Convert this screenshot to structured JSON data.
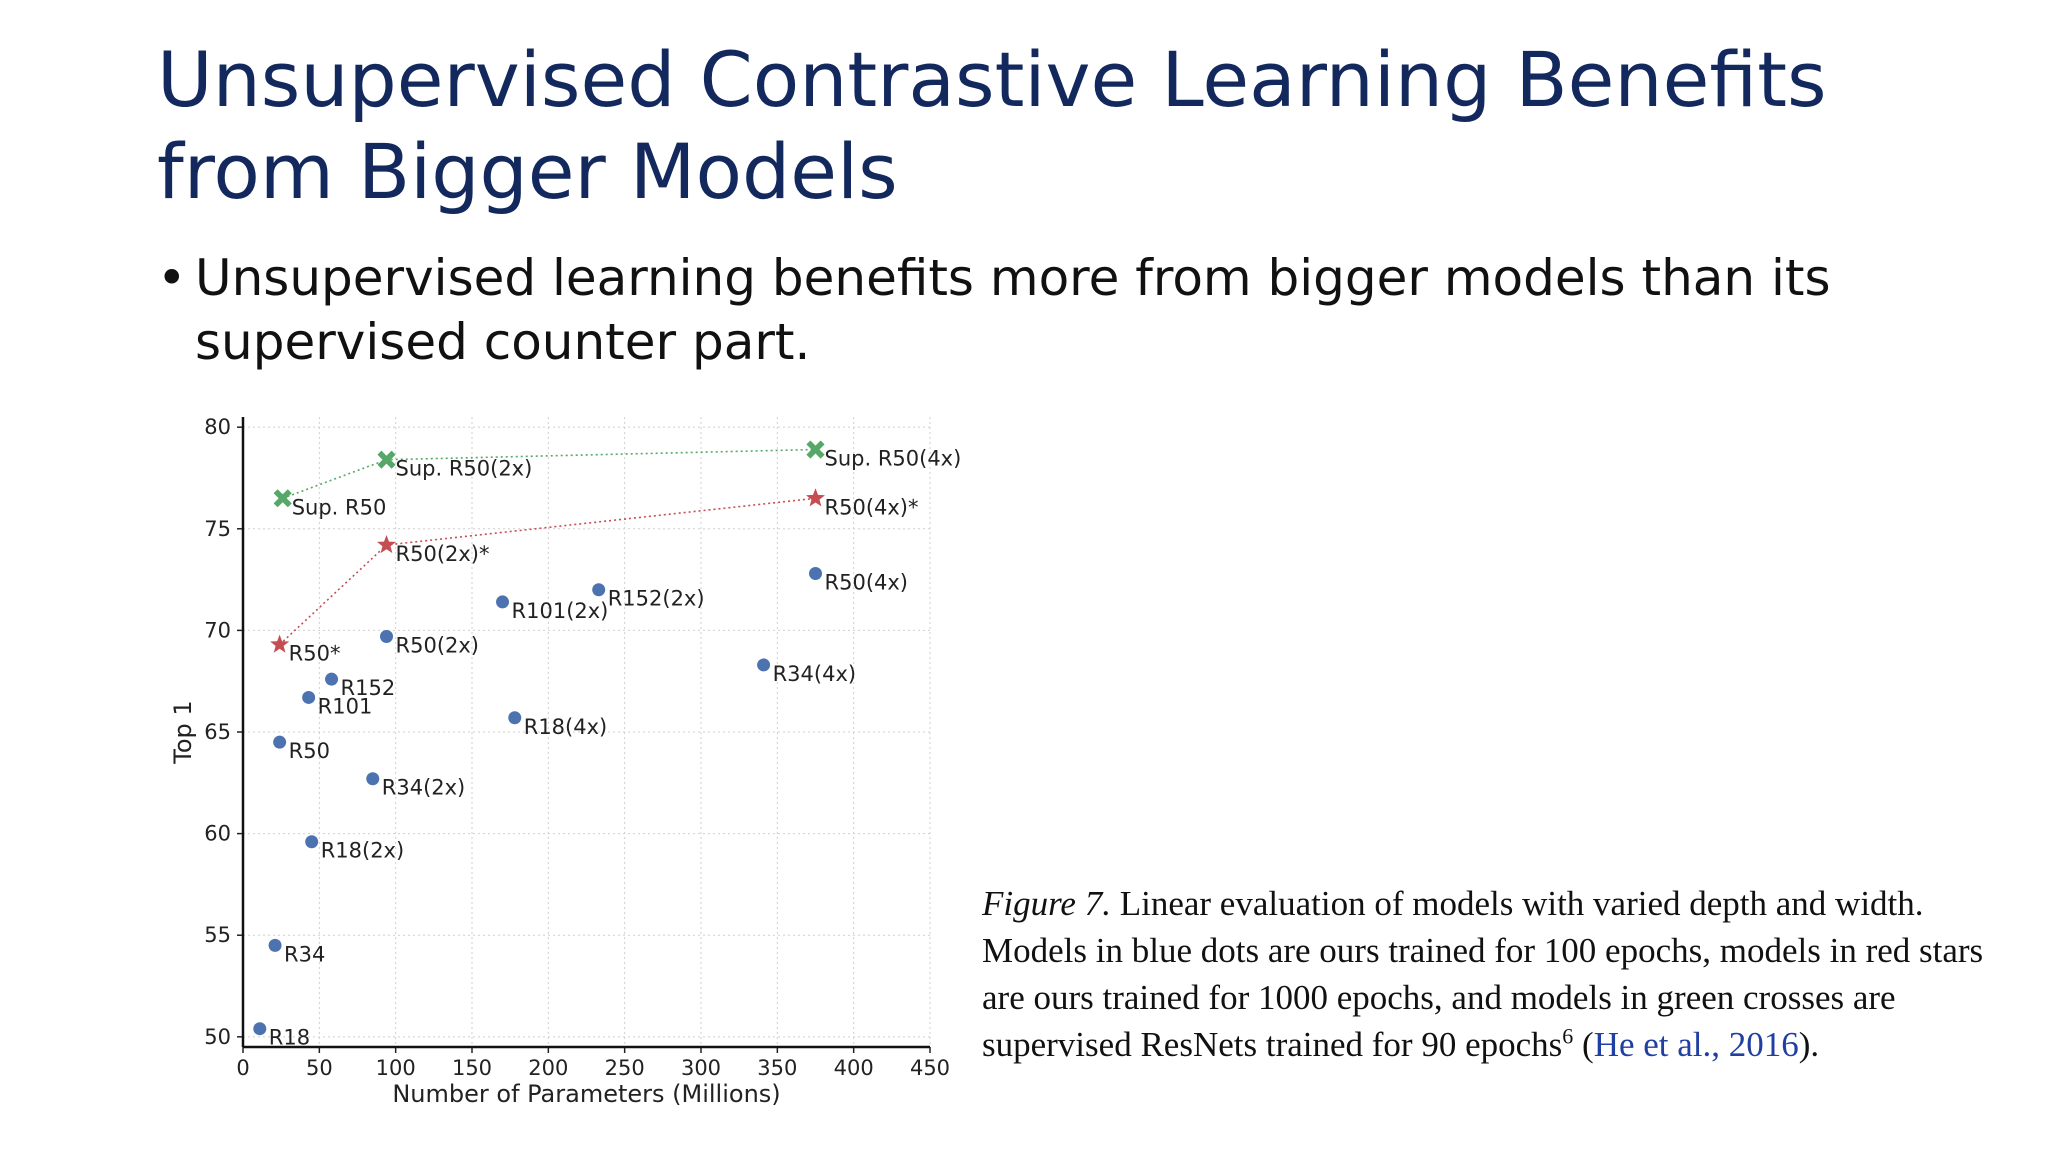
{
  "slide": {
    "title": "Unsupervised Contrastive Learning Benefits from Bigger Models",
    "bullet": "Unsupervised learning benefits more from bigger models than its supervised counter part."
  },
  "caption": {
    "label": "Figure 7.",
    "text": " Linear evaluation of models with varied depth and width. Models in blue dots are ours trained for 100 epochs, models in red stars are ours trained for 1000 epochs, and models in green crosses are supervised ResNets trained for 90 epochs",
    "footnote": "6",
    "open_paren": " (",
    "citation": "He et al., 2016",
    "close_paren": ")."
  },
  "colors": {
    "blue": "#4c72b0",
    "red": "#c44e52",
    "green": "#55a868",
    "title": "#13295e"
  },
  "chart_data": {
    "type": "scatter",
    "xlabel": "Number of Parameters (Millions)",
    "ylabel": "Top 1",
    "xlim": [
      0,
      450
    ],
    "ylim": [
      49.5,
      80.5
    ],
    "xticks": [
      0,
      50,
      100,
      150,
      200,
      250,
      300,
      350,
      400,
      450
    ],
    "yticks": [
      50,
      55,
      60,
      65,
      70,
      75,
      80
    ],
    "grid": true,
    "series": [
      {
        "marker": "circle",
        "color": "#4c72b0",
        "points": [
          {
            "label": "R18",
            "x": 11,
            "y": 50.4
          },
          {
            "label": "R34",
            "x": 21,
            "y": 54.5
          },
          {
            "label": "R18(2x)",
            "x": 45,
            "y": 59.6
          },
          {
            "label": "R34(2x)",
            "x": 85,
            "y": 62.7
          },
          {
            "label": "R50",
            "x": 24,
            "y": 64.5
          },
          {
            "label": "R101",
            "x": 43,
            "y": 66.7
          },
          {
            "label": "R152",
            "x": 58,
            "y": 67.6
          },
          {
            "label": "R50(2x)",
            "x": 94,
            "y": 69.7
          },
          {
            "label": "R18(4x)",
            "x": 178,
            "y": 65.7
          },
          {
            "label": "R101(2x)",
            "x": 170,
            "y": 71.4
          },
          {
            "label": "R152(2x)",
            "x": 233,
            "y": 72.0
          },
          {
            "label": "R34(4x)",
            "x": 341,
            "y": 68.3
          },
          {
            "label": "R50(4x)",
            "x": 375,
            "y": 72.8
          }
        ]
      },
      {
        "marker": "star",
        "color": "#c44e52",
        "connected": true,
        "points": [
          {
            "label": "R50*",
            "x": 24,
            "y": 69.3
          },
          {
            "label": "R50(2x)*",
            "x": 94,
            "y": 74.2
          },
          {
            "label": "R50(4x)*",
            "x": 375,
            "y": 76.5
          }
        ]
      },
      {
        "marker": "cross",
        "color": "#55a868",
        "connected": true,
        "points": [
          {
            "label": "Sup. R50",
            "x": 26,
            "y": 76.5
          },
          {
            "label": "Sup. R50(2x)",
            "x": 94,
            "y": 78.4
          },
          {
            "label": "Sup. R50(4x)",
            "x": 375,
            "y": 78.9
          }
        ]
      }
    ]
  }
}
